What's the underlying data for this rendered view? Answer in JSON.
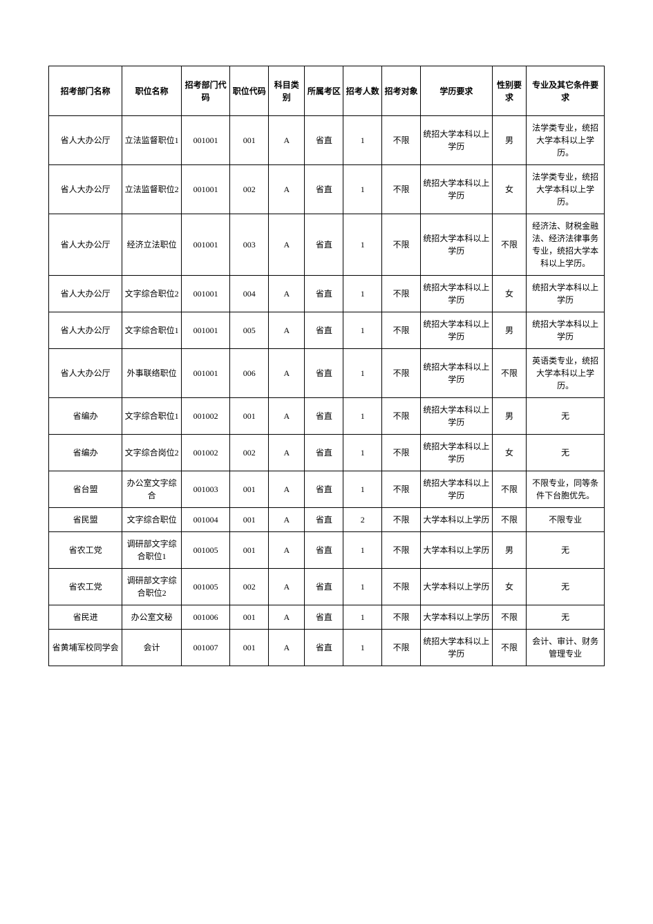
{
  "table": {
    "columns": [
      "招考部门名称",
      "职位名称",
      "招考部门代码",
      "职位代码",
      "科目类别",
      "所属考区",
      "招考人数",
      "招考对象",
      "学历要求",
      "性别要求",
      "专业及其它条件要求"
    ],
    "col_widths_pct": [
      11.8,
      9.5,
      7.8,
      6.2,
      5.8,
      6.2,
      6.2,
      6.2,
      11.5,
      5.5,
      12.5
    ],
    "border_color": "#000000",
    "background_color": "#ffffff",
    "text_color": "#000000",
    "font_size": 12,
    "header_font_weight": "bold",
    "cell_font_weight": "normal",
    "line_height": 1.5,
    "rows": [
      [
        "省人大办公厅",
        "立法监督职位1",
        "001001",
        "001",
        "A",
        "省直",
        "1",
        "不限",
        "统招大学本科以上学历",
        "男",
        "法学类专业，统招大学本科以上学历。"
      ],
      [
        "省人大办公厅",
        "立法监督职位2",
        "001001",
        "002",
        "A",
        "省直",
        "1",
        "不限",
        "统招大学本科以上学历",
        "女",
        "法学类专业，统招大学本科以上学历。"
      ],
      [
        "省人大办公厅",
        "经济立法职位",
        "001001",
        "003",
        "A",
        "省直",
        "1",
        "不限",
        "统招大学本科以上学历",
        "不限",
        "经济法、财税金融法、经济法律事务专业，统招大学本科以上学历。"
      ],
      [
        "省人大办公厅",
        "文字综合职位2",
        "001001",
        "004",
        "A",
        "省直",
        "1",
        "不限",
        "统招大学本科以上学历",
        "女",
        "统招大学本科以上学历"
      ],
      [
        "省人大办公厅",
        "文字综合职位1",
        "001001",
        "005",
        "A",
        "省直",
        "1",
        "不限",
        "统招大学本科以上学历",
        "男",
        "统招大学本科以上学历"
      ],
      [
        "省人大办公厅",
        "外事联络职位",
        "001001",
        "006",
        "A",
        "省直",
        "1",
        "不限",
        "统招大学本科以上学历",
        "不限",
        "英语类专业，统招大学本科以上学历。"
      ],
      [
        "省编办",
        "文字综合职位1",
        "001002",
        "001",
        "A",
        "省直",
        "1",
        "不限",
        "统招大学本科以上学历",
        "男",
        "无"
      ],
      [
        "省编办",
        "文字综合岗位2",
        "001002",
        "002",
        "A",
        "省直",
        "1",
        "不限",
        "统招大学本科以上学历",
        "女",
        "无"
      ],
      [
        "省台盟",
        "办公室文字综合",
        "001003",
        "001",
        "A",
        "省直",
        "1",
        "不限",
        "统招大学本科以上学历",
        "不限",
        "不限专业，同等条件下台胞优先。"
      ],
      [
        "省民盟",
        "文字综合职位",
        "001004",
        "001",
        "A",
        "省直",
        "2",
        "不限",
        "大学本科以上学历",
        "不限",
        "不限专业"
      ],
      [
        "省农工党",
        "调研部文字综合职位1",
        "001005",
        "001",
        "A",
        "省直",
        "1",
        "不限",
        "大学本科以上学历",
        "男",
        "无"
      ],
      [
        "省农工党",
        "调研部文字综合职位2",
        "001005",
        "002",
        "A",
        "省直",
        "1",
        "不限",
        "大学本科以上学历",
        "女",
        "无"
      ],
      [
        "省民进",
        "办公室文秘",
        "001006",
        "001",
        "A",
        "省直",
        "1",
        "不限",
        "大学本科以上学历",
        "不限",
        "无"
      ],
      [
        "省黄埔军校同学会",
        "会计",
        "001007",
        "001",
        "A",
        "省直",
        "1",
        "不限",
        "统招大学本科以上学历",
        "不限",
        "会计、审计、财务管理专业"
      ]
    ]
  }
}
